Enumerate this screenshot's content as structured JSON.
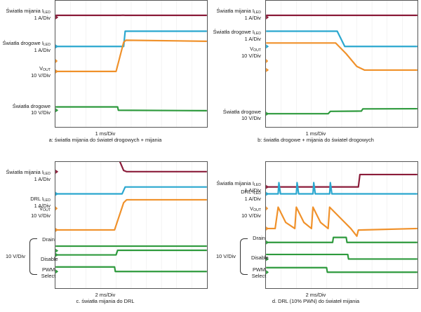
{
  "colors": {
    "red": "#8b1c3a",
    "blue": "#2aa7cf",
    "orange": "#f0912a",
    "green": "#2e9a3d",
    "marker": "#f0912a",
    "grid": "#e8e8e8"
  },
  "chart_data": [
    {
      "type": "line",
      "title": "",
      "timebase": "1 ms/Div",
      "caption": "a: światła mijania do świateł drogowych + mijania",
      "channels": [
        {
          "name": "Światła mijania I",
          "sub": "LED",
          "scale": "1 A/Div",
          "color": "red",
          "points": [
            [
              0,
              0.96
            ],
            [
              4.3,
              0.96
            ],
            [
              4.45,
              1.02
            ],
            [
              4.6,
              0.96
            ],
            [
              10,
              0.96
            ]
          ]
        },
        {
          "name": "Światła drogowe I",
          "sub": "LED",
          "scale": "1 A/Div",
          "color": "blue",
          "points": [
            [
              0,
              0
            ],
            [
              4.5,
              0
            ],
            [
              4.6,
              1
            ],
            [
              10,
              1
            ]
          ]
        },
        {
          "name": "V",
          "sub": "OUT",
          "scale": "10 V/Div",
          "color": "orange",
          "points": [
            [
              0,
              0
            ],
            [
              4.0,
              0
            ],
            [
              4.5,
              1.45
            ],
            [
              4.65,
              1.55
            ],
            [
              10,
              1.5
            ]
          ]
        },
        {
          "name": "Światła drogowe",
          "sub": "",
          "scale": "10 V/Div",
          "color": "green",
          "points": [
            [
              0,
              0.4
            ],
            [
              4.1,
              0.4
            ],
            [
              4.15,
              0
            ],
            [
              10,
              -0.05
            ]
          ]
        }
      ]
    },
    {
      "type": "line",
      "title": "",
      "timebase": "1 ms/Div",
      "caption": "b: światła drogowe + mijania do świateł drogowych",
      "channels": [
        {
          "name": "Światła mijania I",
          "sub": "LED",
          "scale": "1 A/Div",
          "color": "red",
          "points": [
            [
              0,
              0.96
            ],
            [
              10,
              0.96
            ]
          ]
        },
        {
          "name": "Światła drogowe I",
          "sub": "LED",
          "scale": "1 A/Div",
          "color": "blue",
          "points": [
            [
              0,
              1
            ],
            [
              4.7,
              1
            ],
            [
              5.2,
              0
            ],
            [
              10,
              0
            ]
          ]
        },
        {
          "name": "V",
          "sub": "OUT",
          "scale": "10 V/Div",
          "color": "orange",
          "points": [
            [
              0,
              1.5
            ],
            [
              4.6,
              1.5
            ],
            [
              5.3,
              0.9
            ],
            [
              6.0,
              0.2
            ],
            [
              6.5,
              0
            ],
            [
              10,
              0
            ]
          ]
        },
        {
          "name": "Światła drogowe",
          "sub": "",
          "scale": "10 V/Div",
          "color": "green",
          "points": [
            [
              0,
              0
            ],
            [
              4.1,
              0
            ],
            [
              4.25,
              0.28
            ],
            [
              6.3,
              0.32
            ],
            [
              6.4,
              0.58
            ],
            [
              10,
              0.6
            ]
          ]
        }
      ]
    },
    {
      "type": "line",
      "title": "",
      "timebase": "2 ms/Div",
      "caption": "c. światła mijania do DRL",
      "channels": [
        {
          "name": "Światła mijania I",
          "sub": "LED",
          "scale": "1 A/Div",
          "color": "red",
          "points": [
            [
              0,
              1
            ],
            [
              4.2,
              1
            ],
            [
              4.5,
              0.1
            ],
            [
              4.7,
              0
            ],
            [
              10,
              0
            ]
          ]
        },
        {
          "name": "DRL I",
          "sub": "LED",
          "scale": "1 A/Div",
          "color": "blue",
          "points": [
            [
              0,
              0
            ],
            [
              4.4,
              0
            ],
            [
              4.6,
              0.62
            ],
            [
              10,
              0.62
            ]
          ]
        },
        {
          "name": "V",
          "sub": "OUT",
          "scale": "10 V/Div",
          "color": "orange",
          "points": [
            [
              0,
              0
            ],
            [
              3.9,
              0
            ],
            [
              4.5,
              1.35
            ],
            [
              4.7,
              1.5
            ],
            [
              10,
              1.5
            ]
          ]
        },
        {
          "name": "Drain",
          "sub": "",
          "scale": "",
          "color": "green",
          "points": [
            [
              0,
              0
            ],
            [
              4.0,
              0
            ],
            [
              4.1,
              0.55
            ],
            [
              10,
              0.55
            ]
          ]
        },
        {
          "name": "Disable",
          "sub": "",
          "scale": "",
          "color": "green",
          "points": [
            [
              0,
              0.55
            ],
            [
              10,
              0.55
            ]
          ]
        },
        {
          "name": "PWM Select",
          "sub": "",
          "scale": "",
          "color": "green",
          "points": [
            [
              0,
              0.55
            ],
            [
              3.9,
              0.55
            ],
            [
              3.95,
              0
            ],
            [
              10,
              0
            ]
          ]
        }
      ]
    },
    {
      "type": "line",
      "title": "",
      "timebase": "2 ms/Div",
      "caption": "d. DRL (10% PWN) do świateł mijania",
      "channels": [
        {
          "name": "Światła mijania I",
          "sub": "LED",
          "scale": "1 A/Div",
          "color": "red",
          "points": [
            [
              0,
              0
            ],
            [
              6.1,
              0
            ],
            [
              6.2,
              1.05
            ],
            [
              10,
              1.05
            ]
          ]
        },
        {
          "name": "DRL I",
          "sub": "LED",
          "scale": "1 A/Div",
          "color": "blue",
          "points": [
            [
              0,
              0
            ],
            [
              0.8,
              0
            ],
            [
              0.85,
              0.9
            ],
            [
              0.95,
              0
            ],
            [
              2.0,
              0
            ],
            [
              2.05,
              0.9
            ],
            [
              2.15,
              0
            ],
            [
              3.1,
              0
            ],
            [
              3.15,
              0.9
            ],
            [
              3.25,
              0
            ],
            [
              4.2,
              0
            ],
            [
              4.25,
              0.9
            ],
            [
              4.35,
              0
            ],
            [
              10,
              0
            ]
          ]
        },
        {
          "name": "V",
          "sub": "OUT",
          "scale": "10 V/Div",
          "color": "orange",
          "points": [
            [
              0,
              0
            ],
            [
              0.6,
              0
            ],
            [
              0.8,
              1.4
            ],
            [
              1.3,
              0.4
            ],
            [
              1.9,
              0
            ],
            [
              2.0,
              1.4
            ],
            [
              2.5,
              0.4
            ],
            [
              3.0,
              0
            ],
            [
              3.1,
              1.4
            ],
            [
              3.6,
              0.4
            ],
            [
              4.1,
              0
            ],
            [
              4.2,
              1.4
            ],
            [
              4.5,
              1.1
            ],
            [
              5.0,
              0.6
            ],
            [
              5.6,
              0
            ],
            [
              6.0,
              -0.5
            ],
            [
              6.1,
              -0.1
            ],
            [
              10,
              0
            ]
          ]
        },
        {
          "name": "Drain",
          "sub": "",
          "scale": "",
          "color": "green",
          "points": [
            [
              0,
              0
            ],
            [
              4.4,
              0
            ],
            [
              4.45,
              0.6
            ],
            [
              5.3,
              0.6
            ],
            [
              5.35,
              0
            ],
            [
              10,
              0
            ]
          ]
        },
        {
          "name": "Disable",
          "sub": "",
          "scale": "",
          "color": "green",
          "points": [
            [
              0,
              0.55
            ],
            [
              5.4,
              0.55
            ],
            [
              5.45,
              0
            ],
            [
              10,
              0
            ]
          ]
        },
        {
          "name": "PWM Select",
          "sub": "",
          "scale": "",
          "color": "green",
          "points": [
            [
              0,
              0.55
            ],
            [
              4.0,
              0.55
            ],
            [
              4.05,
              0
            ],
            [
              10,
              0
            ]
          ]
        }
      ]
    }
  ],
  "brace_label": "10 V/Div"
}
